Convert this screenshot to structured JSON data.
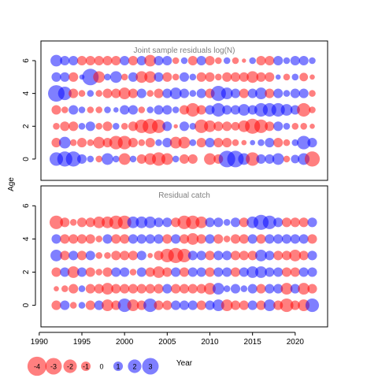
{
  "chart_data": [
    {
      "type": "bubble",
      "title": "Joint sample residuals log(N)",
      "ylabel": "Age",
      "xlim": [
        1990.2,
        2023.8
      ],
      "ylim": [
        -1.3,
        7.2
      ],
      "yticks": [
        0,
        2,
        4,
        6
      ],
      "x": [
        1992,
        1993,
        1994,
        1995,
        1996,
        1997,
        1998,
        1999,
        2000,
        2001,
        2002,
        2003,
        2004,
        2005,
        2006,
        2007,
        2008,
        2009,
        2010,
        2011,
        2012,
        2013,
        2014,
        2015,
        2016,
        2017,
        2018,
        2019,
        2020,
        2021,
        2022
      ],
      "ages": [
        0,
        1,
        2,
        3,
        4,
        5,
        6
      ],
      "residuals": [
        [
          2.0,
          2.5,
          2.5,
          1.0,
          0.5,
          -0.5,
          1.5,
          0.5,
          -1.5,
          0.5,
          -1.0,
          -1.5,
          -2.0,
          -1.5,
          0.5,
          -1.0,
          -1.0,
          0.0,
          -1.5,
          -1.0,
          3.0,
          3.0,
          1.5,
          -2.0,
          1.0,
          1.0,
          1.5,
          -0.5,
          0.8,
          1.5,
          -2.5
        ],
        [
          -1.0,
          1.5,
          -0.5,
          -1.0,
          -0.5,
          -1.5,
          -1.0,
          -2.0,
          -2.0,
          -1.0,
          -0.5,
          -1.0,
          0.5,
          1.0,
          -1.5,
          -1.5,
          0.5,
          -1.0,
          1.0,
          -1.0,
          -1.0,
          -0.5,
          -0.3,
          0.3,
          0.5,
          1.0,
          -1.0,
          -0.5,
          0.5,
          2.0,
          1.0
        ],
        [
          -0.5,
          -1.0,
          -1.0,
          0.5,
          1.0,
          -0.5,
          -1.0,
          0.5,
          -0.5,
          -1.0,
          -2.0,
          -2.5,
          -2.0,
          1.0,
          -0.2,
          1.0,
          0.5,
          -2.0,
          -1.5,
          -1.0,
          -1.0,
          -0.8,
          -1.5,
          -2.5,
          -2.0,
          -1.0,
          1.0,
          0.5,
          -0.5,
          -0.5,
          -0.3
        ],
        [
          -1.0,
          -0.5,
          1.0,
          0.5,
          -0.5,
          -0.5,
          0.5,
          0.3,
          1.0,
          1.0,
          -0.5,
          0.5,
          1.0,
          1.0,
          0.5,
          -1.0,
          -2.0,
          -1.0,
          1.0,
          2.0,
          1.0,
          1.0,
          1.5,
          1.0,
          2.0,
          2.0,
          2.0,
          1.5,
          1.0,
          -2.0,
          -0.5
        ],
        [
          3.0,
          2.0,
          -1.0,
          -0.5,
          0.5,
          -0.5,
          -1.0,
          -1.0,
          -1.5,
          -1.0,
          1.0,
          -0.5,
          -1.0,
          1.0,
          1.5,
          1.0,
          0.5,
          1.0,
          -1.0,
          2.5,
          1.5,
          1.0,
          -1.0,
          1.0,
          1.5,
          -1.0,
          1.0,
          0.5,
          1.0,
          1.0,
          -0.5
        ],
        [
          1.0,
          1.0,
          -1.0,
          0.3,
          3.0,
          -1.5,
          0.5,
          1.5,
          -0.5,
          1.0,
          -1.5,
          -1.5,
          1.0,
          -1.0,
          -0.5,
          1.0,
          0.5,
          -1.0,
          -1.0,
          -0.5,
          -1.0,
          -1.0,
          -1.0,
          -1.5,
          -1.0,
          -1.0,
          0.3,
          -0.5,
          0.5,
          -0.8,
          -0.3
        ],
        [
          1.5,
          1.0,
          1.0,
          -1.0,
          -1.0,
          -1.0,
          -1.0,
          -1.0,
          1.0,
          -1.0,
          1.0,
          -1.5,
          1.0,
          1.0,
          -0.5,
          0.5,
          -1.0,
          1.0,
          -1.0,
          -0.5,
          0.5,
          -0.5,
          -0.2,
          0.5,
          -1.0,
          -1.0,
          1.0,
          0.5,
          1.0,
          1.0,
          0.5
        ]
      ]
    },
    {
      "type": "bubble",
      "title": "Residual catch",
      "ylabel": "Age",
      "xlabel": "Year",
      "xlim": [
        1990.2,
        2023.8
      ],
      "ylim": [
        -1.3,
        7.2
      ],
      "yticks": [
        0,
        2,
        4,
        6
      ],
      "xticks": [
        1990,
        1995,
        2000,
        2005,
        2010,
        2015,
        2020
      ],
      "x": [
        1992,
        1993,
        1994,
        1995,
        1996,
        1997,
        1998,
        1999,
        2000,
        2001,
        2002,
        2003,
        2004,
        2005,
        2006,
        2007,
        2008,
        2009,
        2010,
        2011,
        2012,
        2013,
        2014,
        2015,
        2016,
        2017,
        2018,
        2019,
        2020,
        2021,
        2022
      ],
      "ages": [
        0,
        1,
        2,
        3,
        4,
        5
      ],
      "residuals": [
        [
          -1.0,
          1.0,
          -0.5,
          0.5,
          -1.0,
          1.0,
          -1.5,
          -1.0,
          2.0,
          -1.5,
          -1.0,
          2.0,
          -1.0,
          -1.0,
          1.0,
          1.0,
          1.0,
          -1.0,
          1.0,
          1.5,
          -1.5,
          -1.0,
          -1.0,
          1.0,
          -1.0,
          1.5,
          -1.0,
          -2.0,
          -1.0,
          -1.5,
          2.0
        ],
        [
          -0.3,
          -0.5,
          -1.0,
          0.5,
          -1.0,
          -1.0,
          -1.5,
          -1.0,
          -1.0,
          -1.0,
          -1.0,
          -1.0,
          -1.0,
          1.0,
          -1.0,
          -1.0,
          -1.0,
          -1.0,
          -1.5,
          1.5,
          0.5,
          1.0,
          0.5,
          1.0,
          -1.0,
          1.0,
          1.0,
          -1.5,
          1.0,
          -1.5,
          -1.0
        ],
        [
          -1.0,
          1.0,
          -1.5,
          1.0,
          -1.0,
          -0.5,
          -1.0,
          1.0,
          1.0,
          -0.5,
          1.0,
          -1.0,
          -1.5,
          -1.0,
          1.0,
          -1.0,
          1.0,
          1.0,
          -1.0,
          1.0,
          1.0,
          -1.0,
          1.0,
          1.5,
          1.5,
          1.0,
          1.0,
          -1.0,
          -1.0,
          1.0,
          1.0
        ],
        [
          1.5,
          -1.0,
          1.0,
          -1.0,
          1.0,
          -0.5,
          -0.5,
          -1.0,
          -1.0,
          -1.0,
          1.0,
          -0.3,
          -1.0,
          -2.0,
          -2.5,
          -2.0,
          1.0,
          1.0,
          -1.0,
          1.0,
          1.0,
          -1.0,
          -1.0,
          -1.0,
          1.5,
          1.0,
          -1.0,
          -1.0,
          -1.5,
          -1.0,
          1.0
        ],
        [
          1.0,
          -1.0,
          -1.0,
          -1.0,
          -1.0,
          -0.5,
          1.0,
          -1.0,
          -1.0,
          1.0,
          1.0,
          1.0,
          1.0,
          -1.0,
          1.0,
          -1.0,
          -1.5,
          -1.0,
          1.0,
          -1.0,
          -0.5,
          -1.0,
          -1.0,
          1.0,
          -1.0,
          1.0,
          1.0,
          1.0,
          1.0,
          1.0,
          -1.0
        ],
        [
          -2.0,
          -1.0,
          -0.5,
          -1.0,
          -1.0,
          -1.5,
          -1.5,
          -2.0,
          -2.0,
          1.5,
          1.5,
          1.5,
          1.0,
          1.0,
          -1.0,
          -2.0,
          -2.0,
          -1.5,
          1.0,
          1.0,
          0.5,
          1.0,
          -1.0,
          1.5,
          2.5,
          2.0,
          1.0,
          -1.0,
          -1.0,
          -1.0,
          1.0
        ]
      ]
    }
  ],
  "legend": {
    "items": [
      {
        "value": -4,
        "label": "-4"
      },
      {
        "value": -3,
        "label": "-3"
      },
      {
        "value": -2,
        "label": "-2"
      },
      {
        "value": -1,
        "label": "-1"
      },
      {
        "value": 0,
        "label": "0"
      },
      {
        "value": 1,
        "label": "1"
      },
      {
        "value": 2,
        "label": "2"
      },
      {
        "value": 3,
        "label": "3"
      }
    ]
  },
  "colors": {
    "negative_fill": "#ff000080",
    "positive_fill": "#0000ff80",
    "panel_border": "#000000",
    "title_color": "#7f7f7f",
    "text_color": "#000000"
  }
}
